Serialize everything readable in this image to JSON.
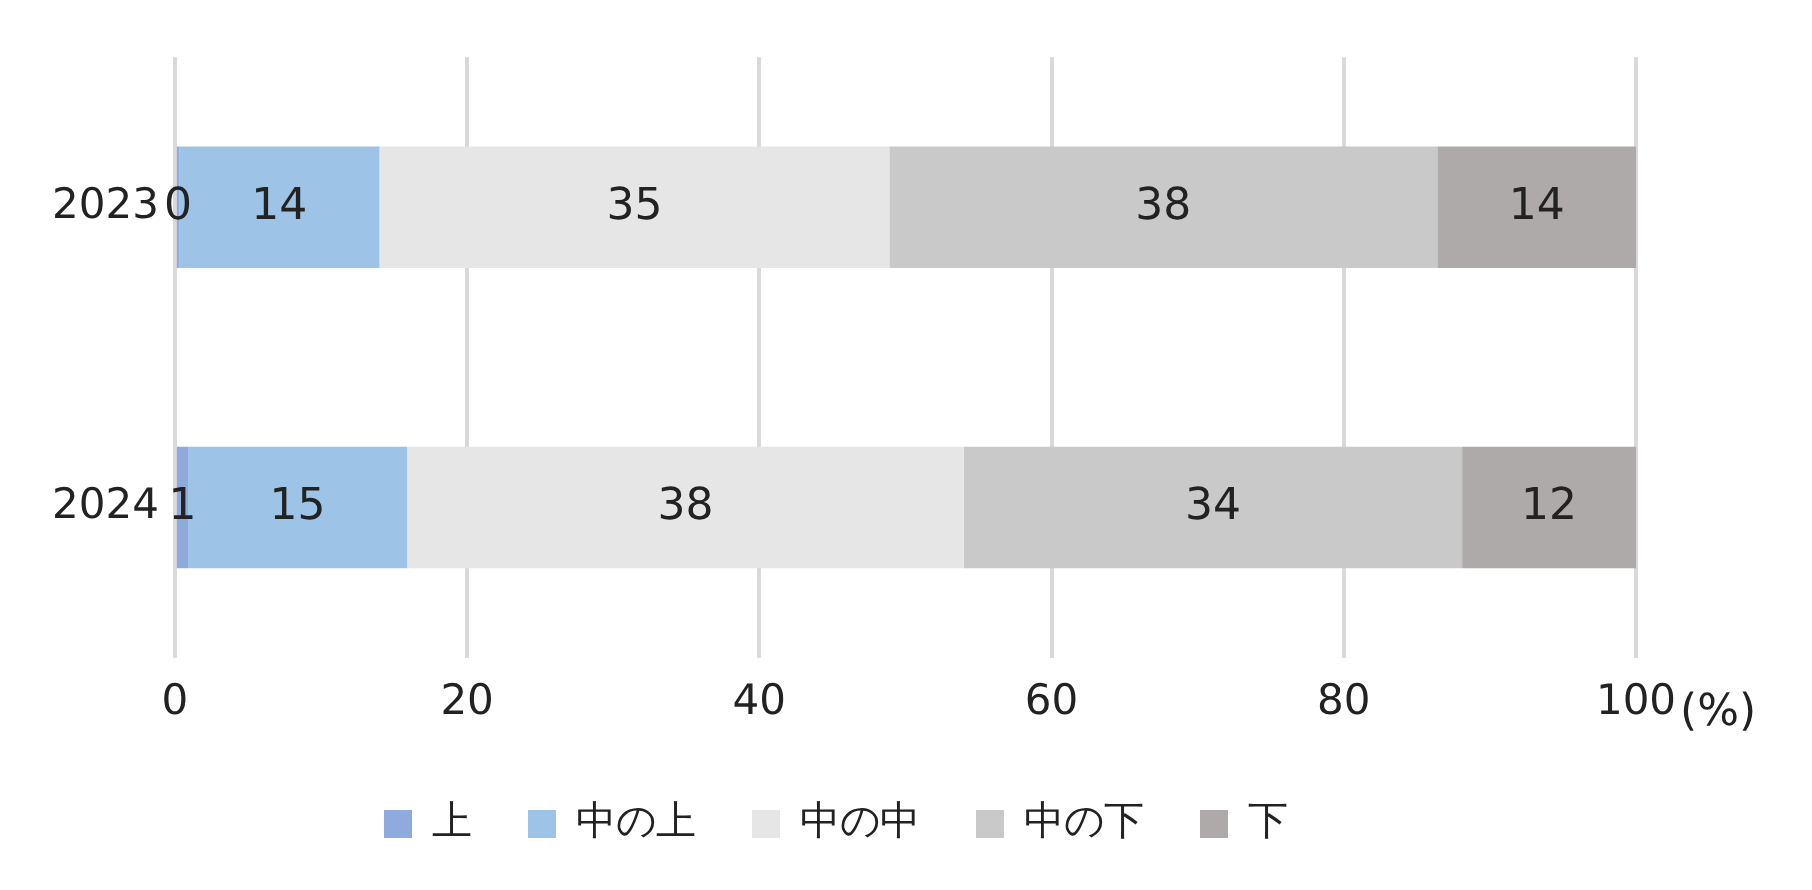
{
  "chart_data": {
    "type": "bar",
    "orientation": "horizontal",
    "stacked": true,
    "categories": [
      "2023",
      "2024"
    ],
    "series": [
      {
        "name": "上",
        "color": "#8faadc",
        "values": [
          0.3,
          0.9
        ],
        "value_labels": [
          "0",
          "1"
        ]
      },
      {
        "name": "中の上",
        "color": "#9dc3e6",
        "values": [
          13.7,
          15.0
        ],
        "value_labels": [
          "14",
          "15"
        ]
      },
      {
        "name": "中の中",
        "color": "#e7e6e6",
        "values": [
          34.9,
          38.1
        ],
        "value_labels": [
          "35",
          "38"
        ]
      },
      {
        "name": "中の下",
        "color": "#c9c9c9",
        "values": [
          37.5,
          34.1
        ],
        "value_labels": [
          "38",
          "34"
        ]
      },
      {
        "name": "下",
        "color": "#aeaaaa",
        "values": [
          13.6,
          11.9
        ],
        "value_labels": [
          "14",
          "12"
        ]
      }
    ],
    "xlim": [
      0,
      100
    ],
    "xticks": [
      0,
      20,
      40,
      60,
      80,
      100
    ],
    "xlabel": "(%)",
    "grid": "x",
    "legend": "bottom"
  }
}
